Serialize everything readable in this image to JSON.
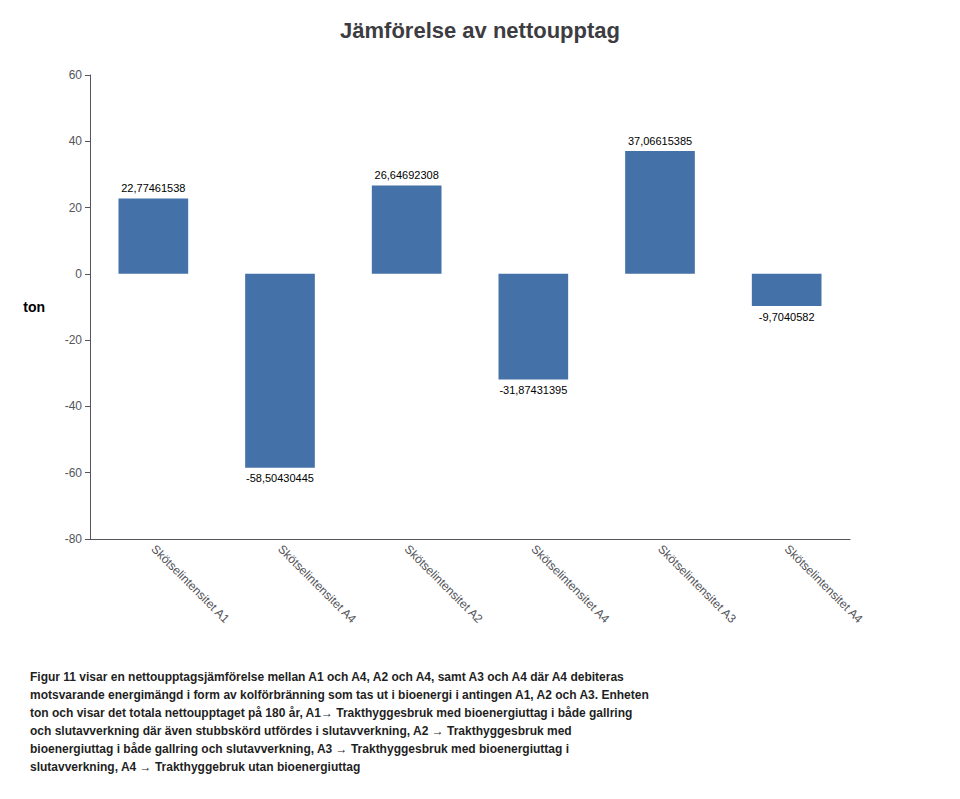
{
  "chart_data": {
    "type": "bar",
    "title": "Jämförelse av nettoupptag",
    "categories": [
      "Skötselintensitet A1",
      "Skötselintensitet A4",
      "Skötselintensitet A2",
      "Skötselintensitet A4",
      "Skötselintensitet A3",
      "Skötselintensitet A4"
    ],
    "values": [
      22.77461538,
      -58.50430445,
      26.64692308,
      -31.87431395,
      37.06615385,
      -9.7040582
    ],
    "value_labels": [
      "22,77461538",
      "-58,50430445",
      "26,64692308",
      "-31,87431395",
      "37,06615385",
      "-9,7040582"
    ],
    "data_labels": true,
    "color": "#4472a8",
    "ylabel": "ton",
    "ylim": [
      -80,
      60
    ],
    "yticks": [
      -80,
      -60,
      -40,
      -20,
      0,
      20,
      40,
      60
    ],
    "grid": false,
    "caption": [
      "Figur 11 visar en nettoupptagsjämförelse mellan A1 och A4, A2 och A4, samt A3 och A4 där A4 debiteras",
      "motsvarande energimängd i form av kolförbränning som tas ut i bioenergi i antingen A1, A2 och A3. Enheten",
      "ton och visar det totala nettoupptaget på 180 år, A1→ Trakthyggesbruk med bioenergiuttag i både gallring",
      "och slutavverkning där även stubbskörd utfördes i slutavverkning, A2 → Trakthyggesbruk med",
      "bioenergiuttag i både gallring och slutavverkning, A3 → Trakthyggesbruk med bioenergiuttag i",
      "slutavverkning, A4 → Trakthyggebruk utan bioenergiuttag"
    ]
  }
}
